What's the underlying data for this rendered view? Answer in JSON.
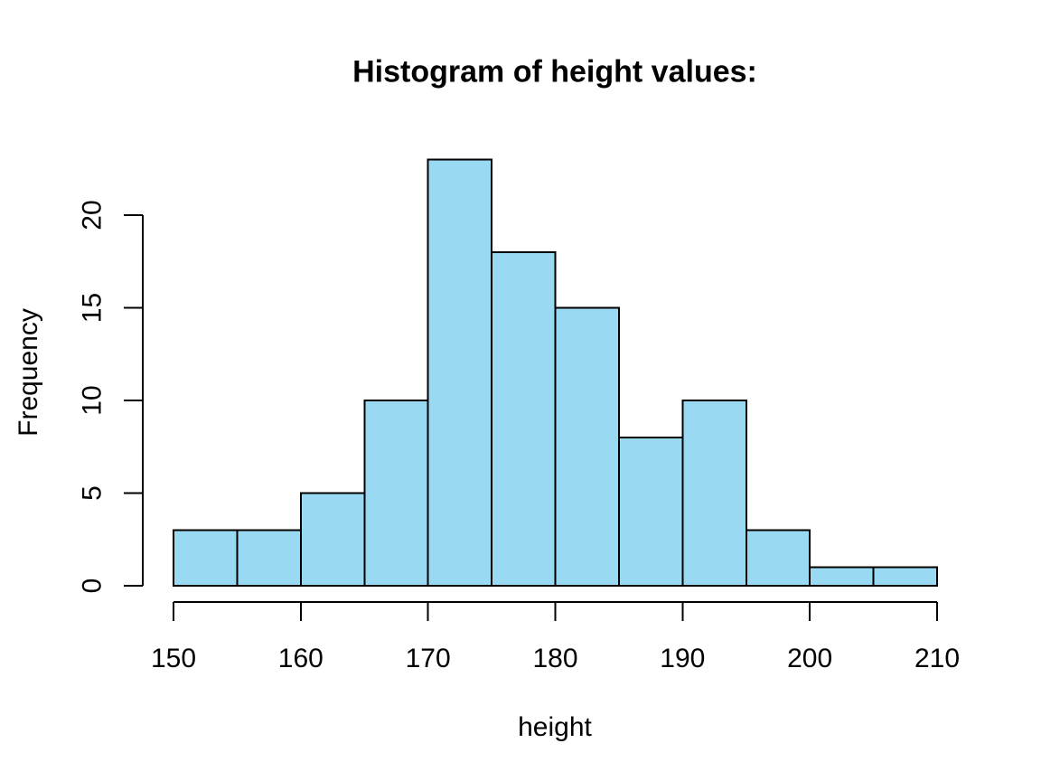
{
  "figure": {
    "background": "#FFFFFF"
  },
  "chart_data": {
    "type": "bar",
    "subtype": "histogram",
    "title": "Histogram of height values:",
    "xlabel": "height",
    "ylabel": "Frequency",
    "bin_edges": [
      150,
      155,
      160,
      165,
      170,
      175,
      180,
      185,
      190,
      195,
      200,
      205,
      210
    ],
    "counts": [
      3,
      3,
      5,
      10,
      23,
      18,
      15,
      8,
      10,
      3,
      1,
      1
    ],
    "x_ticks": [
      150,
      160,
      170,
      180,
      190,
      200,
      210
    ],
    "y_ticks": [
      0,
      5,
      10,
      15,
      20
    ],
    "xlim": [
      150,
      210
    ],
    "ylim": [
      0,
      23
    ],
    "grid": false,
    "legend": "none",
    "bar_fill": "#99D9F2",
    "bar_border": "#000000",
    "axis_color": "#000000",
    "text_color": "#000000"
  }
}
